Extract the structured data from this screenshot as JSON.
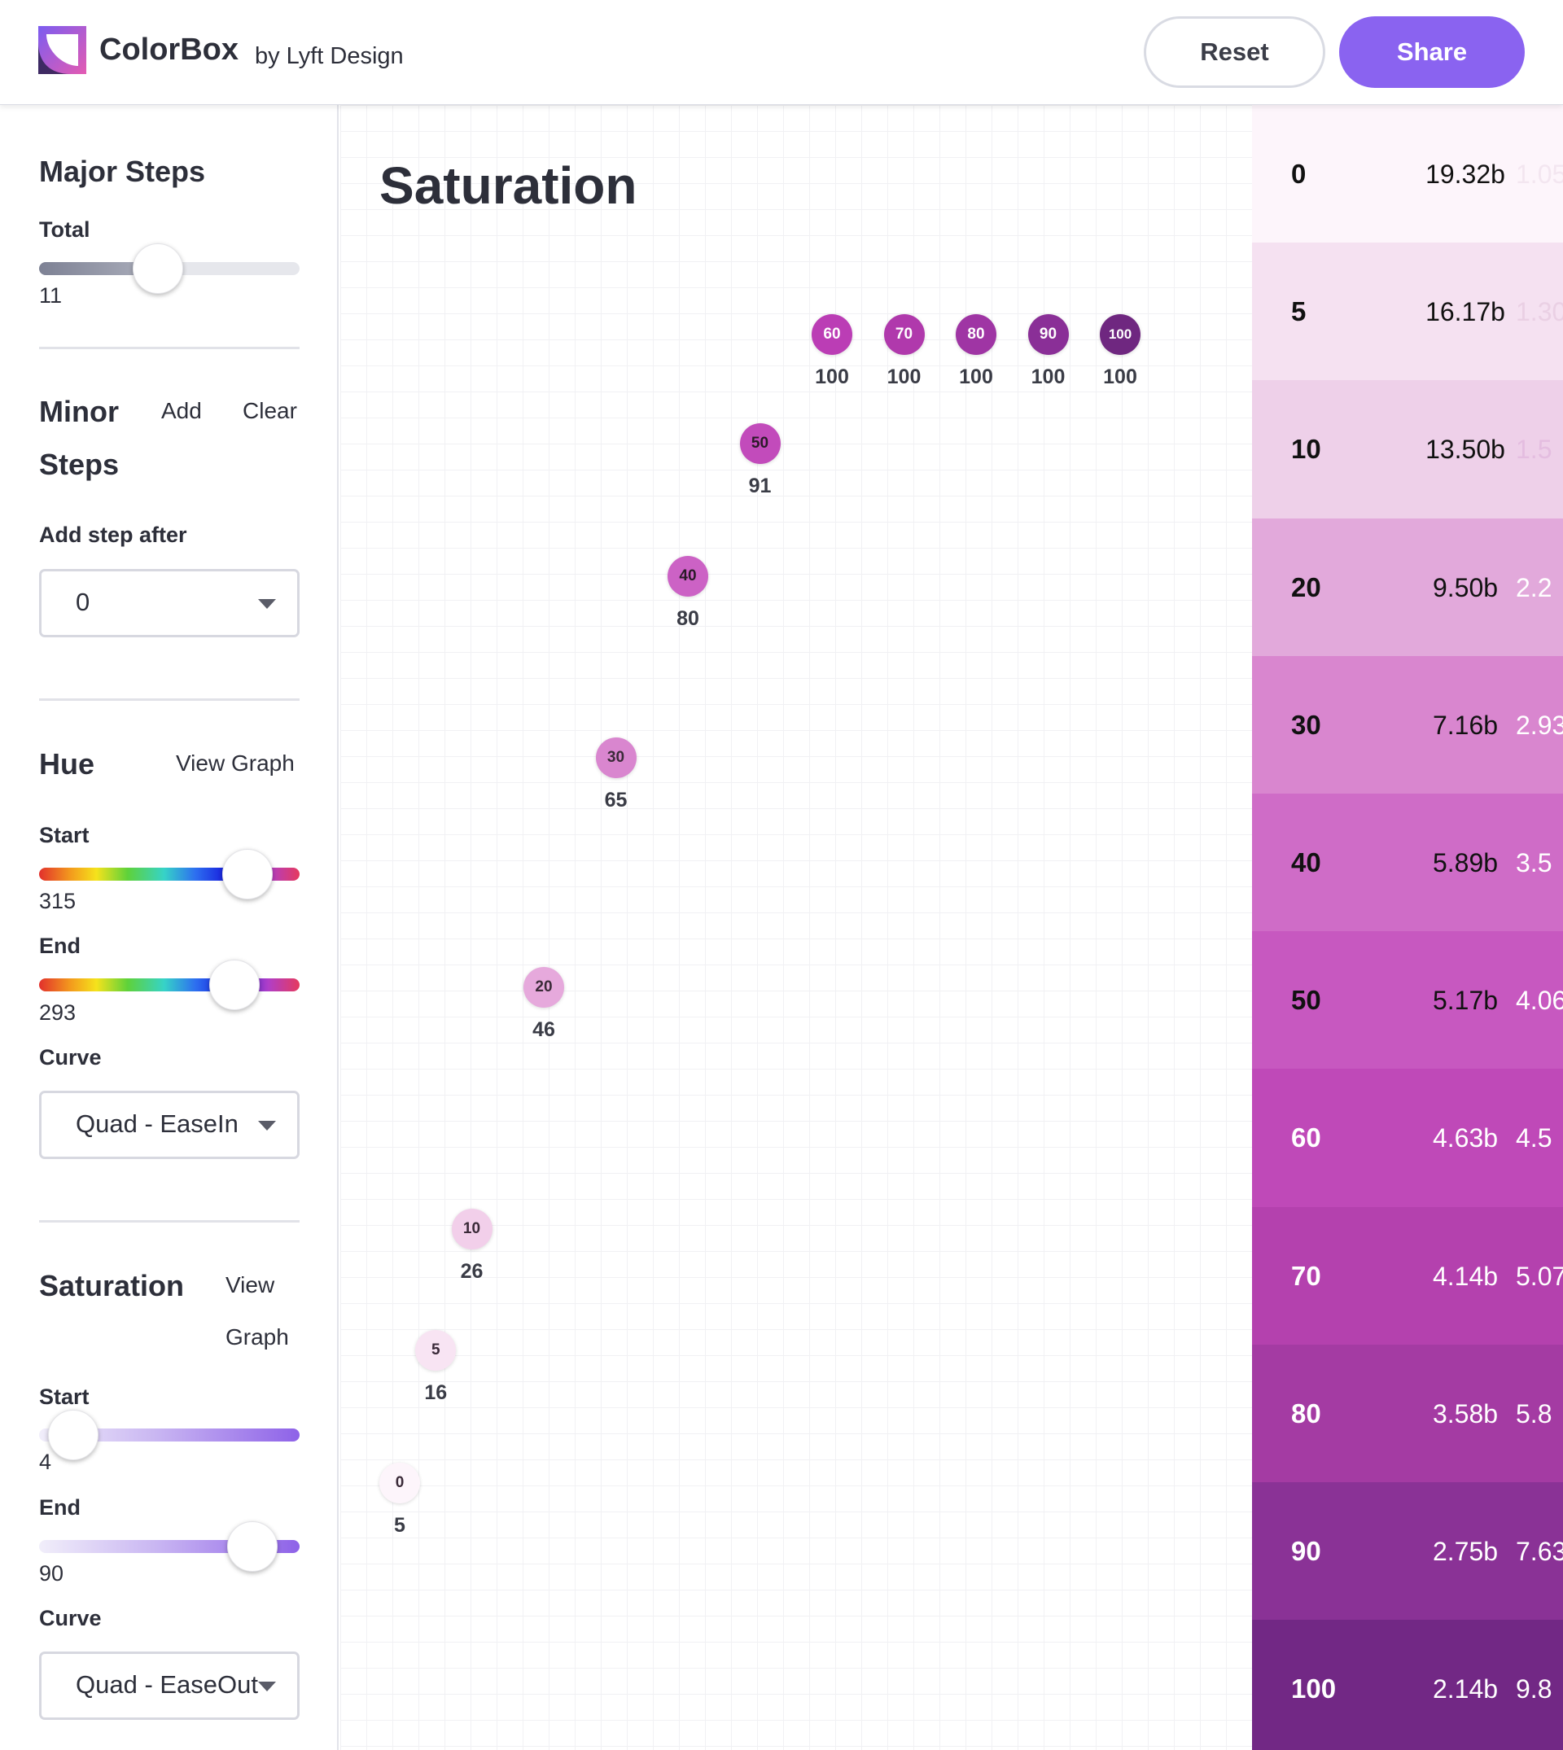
{
  "app": {
    "name": "ColorBox",
    "byline": "by Lyft Design"
  },
  "header": {
    "reset_label": "Reset",
    "share_label": "Share"
  },
  "sidebar": {
    "major": {
      "title": "Major Steps",
      "total_label": "Total",
      "total_value": "11",
      "total_fraction": 0.41
    },
    "minor": {
      "title_line1": "Minor",
      "title_line2": "Steps",
      "add_label": "Add",
      "clear_label": "Clear",
      "add_after_label": "Add step after",
      "add_after_value": "0"
    },
    "hue": {
      "title": "Hue",
      "view_graph_label": "View Graph",
      "start_label": "Start",
      "start_value": "315",
      "end_label": "End",
      "end_value": "293",
      "curve_label": "Curve",
      "curve_value": "Quad - EaseIn"
    },
    "saturation": {
      "title": "Saturation",
      "view_label": "View",
      "graph_label": "Graph",
      "start_label": "Start",
      "start_value": "4",
      "end_label": "End",
      "end_value": "90",
      "curve_label": "Curve",
      "curve_value": "Quad - EaseOut"
    }
  },
  "graph": {
    "title": "Saturation",
    "points": [
      {
        "step": "0",
        "value": "5",
        "color": "#fdf5fb",
        "text": "#3a2a38"
      },
      {
        "step": "5",
        "value": "16",
        "color": "#f8e4f3",
        "text": "#3a2a38"
      },
      {
        "step": "10",
        "value": "26",
        "color": "#f2cfea",
        "text": "#3a2a38"
      },
      {
        "step": "20",
        "value": "46",
        "color": "#e6a9dc",
        "text": "#3a2a38"
      },
      {
        "step": "30",
        "value": "65",
        "color": "#d986cf",
        "text": "#3a2a38"
      },
      {
        "step": "40",
        "value": "80",
        "color": "#cc62c5",
        "text": "#2a1a28"
      },
      {
        "step": "50",
        "value": "91",
        "color": "#c24bbb",
        "text": "#2a1a28"
      },
      {
        "step": "60",
        "value": "100",
        "color": "#bb3db5",
        "text": "#ffffff"
      },
      {
        "step": "70",
        "value": "100",
        "color": "#b039ac",
        "text": "#ffffff"
      },
      {
        "step": "80",
        "value": "100",
        "color": "#9f35a4",
        "text": "#ffffff"
      },
      {
        "step": "90",
        "value": "100",
        "color": "#8a2f97",
        "text": "#ffffff"
      },
      {
        "step": "100",
        "value": "100",
        "color": "#6f2780",
        "text": "#ffffff"
      }
    ]
  },
  "swatches": [
    {
      "step": "0",
      "contrast": "19.32b",
      "contrast2": "1.05",
      "bg": "#fdf5fb",
      "fg": "#111111",
      "fg2": "#f3e6f0"
    },
    {
      "step": "5",
      "contrast": "16.17b",
      "contrast2": "1.30",
      "bg": "#f5e1f1",
      "fg": "#111111",
      "fg2": "#ead0e4"
    },
    {
      "step": "10",
      "contrast": "13.50b",
      "contrast2": "1.5",
      "bg": "#eed0e9",
      "fg": "#111111",
      "fg2": "#e4bde0"
    },
    {
      "step": "20",
      "contrast": "9.50b",
      "contrast2": "2.2",
      "bg": "#e2a9db",
      "fg": "#111111",
      "fg2": "#ffffff"
    },
    {
      "step": "30",
      "contrast": "7.16b",
      "contrast2": "2.93",
      "bg": "#d986cf",
      "fg": "#111111",
      "fg2": "#ffffff"
    },
    {
      "step": "40",
      "contrast": "5.89b",
      "contrast2": "3.5",
      "bg": "#cf6cc7",
      "fg": "#111111",
      "fg2": "#ffffff"
    },
    {
      "step": "50",
      "contrast": "5.17b",
      "contrast2": "4.06",
      "bg": "#c758c0",
      "fg": "#111111",
      "fg2": "#ffffff"
    },
    {
      "step": "60",
      "contrast": "4.63b",
      "contrast2": "4.5",
      "bg": "#bf49b8",
      "fg": "#ffffff",
      "fg2": "#ffffff"
    },
    {
      "step": "70",
      "contrast": "4.14b",
      "contrast2": "5.07",
      "bg": "#b441ae",
      "fg": "#ffffff",
      "fg2": "#ffffff"
    },
    {
      "step": "80",
      "contrast": "3.58b",
      "contrast2": "5.8",
      "bg": "#a43ba3",
      "fg": "#ffffff",
      "fg2": "#ffffff"
    },
    {
      "step": "90",
      "contrast": "2.75b",
      "contrast2": "7.63",
      "bg": "#8a3296",
      "fg": "#ffffff",
      "fg2": "#ffffff"
    },
    {
      "step": "100",
      "contrast": "2.14b",
      "contrast2": "9.8",
      "bg": "#722885",
      "fg": "#ffffff",
      "fg2": "#ffffff"
    }
  ],
  "colors": {
    "accent": "#8a63f0",
    "divider": "#e1e2e8"
  },
  "icons": {
    "logo": "colorbox-logo-icon",
    "caret": "chevron-down-icon"
  }
}
